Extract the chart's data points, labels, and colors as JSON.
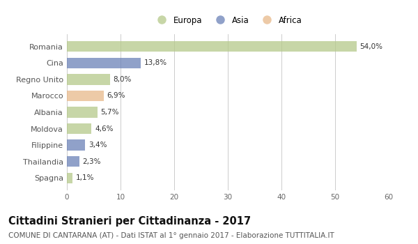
{
  "categories": [
    "Romania",
    "Cina",
    "Regno Unito",
    "Marocco",
    "Albania",
    "Moldova",
    "Filippine",
    "Thailandia",
    "Spagna"
  ],
  "values": [
    54.0,
    13.8,
    8.0,
    6.9,
    5.7,
    4.6,
    3.4,
    2.3,
    1.1
  ],
  "labels": [
    "54,0%",
    "13,8%",
    "8,0%",
    "6,9%",
    "5,7%",
    "4,6%",
    "3,4%",
    "2,3%",
    "1,1%"
  ],
  "colors": [
    "#b5c98a",
    "#6b82b8",
    "#b5c98a",
    "#e8b98a",
    "#b5c98a",
    "#b5c98a",
    "#6b82b8",
    "#6b82b8",
    "#b5c98a"
  ],
  "legend": [
    {
      "label": "Europa",
      "color": "#b5c98a"
    },
    {
      "label": "Asia",
      "color": "#6b82b8"
    },
    {
      "label": "Africa",
      "color": "#e8b98a"
    }
  ],
  "xlim": [
    0,
    60
  ],
  "xticks": [
    0,
    10,
    20,
    30,
    40,
    50,
    60
  ],
  "title": "Cittadini Stranieri per Cittadinanza - 2017",
  "subtitle": "COMUNE DI CANTARANA (AT) - Dati ISTAT al 1° gennaio 2017 - Elaborazione TUTTITALIA.IT",
  "title_fontsize": 10.5,
  "subtitle_fontsize": 7.5,
  "bg_color": "#ffffff",
  "grid_color": "#cccccc",
  "bar_height": 0.65,
  "bar_alpha": 0.75
}
